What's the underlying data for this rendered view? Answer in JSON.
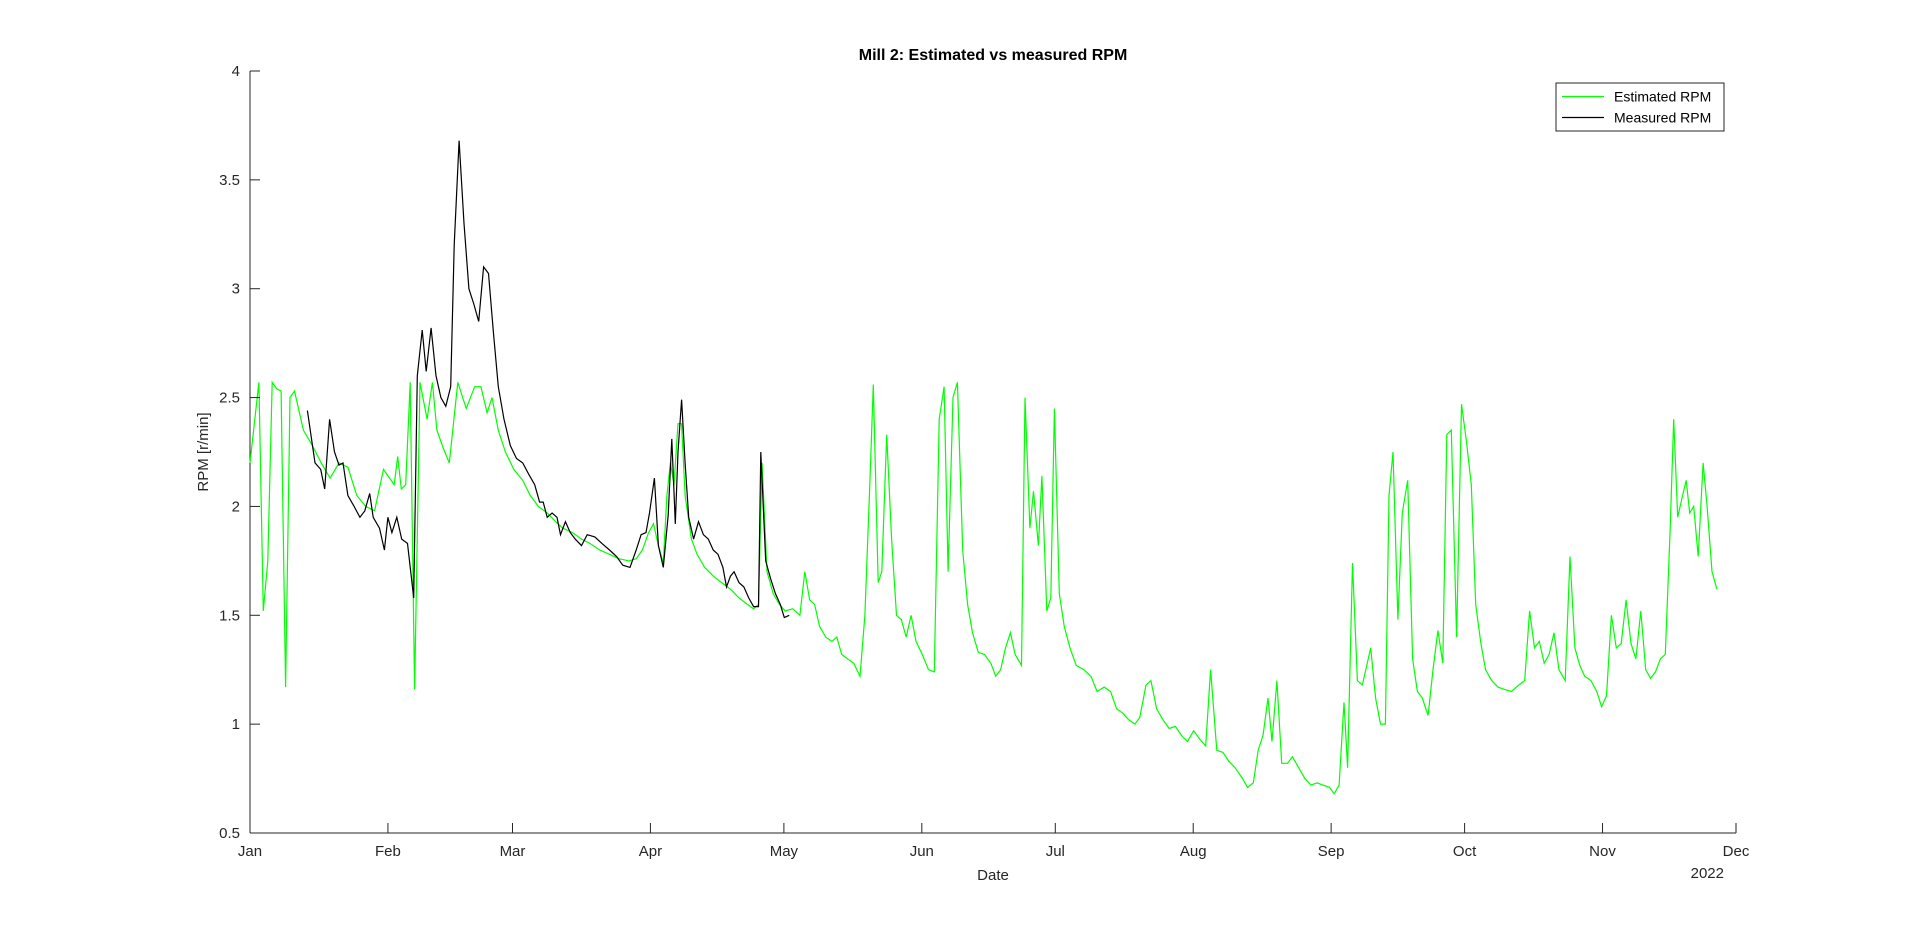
{
  "chart_data": {
    "type": "line",
    "title": "Mill 2: Estimated vs measured RPM",
    "x_label": "Date",
    "y_label": "RPM [r/min]",
    "x_year_label": "2022",
    "xlim": [
      0,
      334
    ],
    "xticks": [
      {
        "value": 0,
        "label": "Jan"
      },
      {
        "value": 31,
        "label": "Feb"
      },
      {
        "value": 59,
        "label": "Mar"
      },
      {
        "value": 90,
        "label": "Apr"
      },
      {
        "value": 120,
        "label": "May"
      },
      {
        "value": 151,
        "label": "Jun"
      },
      {
        "value": 181,
        "label": "Jul"
      },
      {
        "value": 212,
        "label": "Aug"
      },
      {
        "value": 243,
        "label": "Sep"
      },
      {
        "value": 273,
        "label": "Oct"
      },
      {
        "value": 304,
        "label": "Nov"
      },
      {
        "value": 334,
        "label": "Dec"
      }
    ],
    "ylim": [
      0.5,
      4
    ],
    "yticks": [
      0.5,
      1,
      1.5,
      2,
      2.5,
      3,
      3.5,
      4
    ],
    "grid": false,
    "legend": "northeast",
    "series": [
      {
        "name": "Estimated RPM",
        "color": "#00ff00",
        "x": [
          0,
          2,
          3,
          4,
          5,
          6,
          7,
          8,
          9,
          10,
          12,
          14,
          16,
          18,
          20,
          22,
          24,
          26,
          28,
          30,
          32.4,
          33.2,
          34,
          35,
          36,
          37,
          38.2,
          39.8,
          41,
          42,
          43.4,
          44.8,
          46.7,
          48.6,
          50.5,
          51.9,
          53.3,
          54.4,
          55.8,
          57.4,
          59.3,
          61.3,
          63,
          64.8,
          66.8,
          68.7,
          70.3,
          72.5,
          74.5,
          76.4,
          78.6,
          80.8,
          82.9,
          85.2,
          86.8,
          88.2,
          89.6,
          90.7,
          91.8,
          92.9,
          93.7,
          94.5,
          95.3,
          96.2,
          97,
          97.8,
          99.2,
          100.5,
          102.2,
          104.1,
          106,
          108,
          109.9,
          111.8,
          113.2,
          114.3,
          115.1,
          116.2,
          117.6,
          119,
          120.3,
          122,
          123.6,
          124.7,
          125.8,
          126.9,
          128,
          129.4,
          130.8,
          131.9,
          133,
          134.3,
          135.7,
          137.1,
          138.2,
          139.3,
          140.1,
          141.2,
          142,
          143.1,
          144.2,
          145.3,
          146.4,
          147.5,
          148.6,
          149.7,
          151.1,
          152.5,
          153.8,
          154.9,
          156,
          156.9,
          158,
          159,
          160.2,
          161.3,
          162.4,
          163.7,
          165.1,
          166.5,
          167.6,
          168.7,
          169.8,
          170.9,
          172,
          173.4,
          174.2,
          175.3,
          176.1,
          177.2,
          178,
          179.1,
          180,
          180.8,
          181.9,
          183,
          184.3,
          185.7,
          187.4,
          189,
          190.4,
          192,
          193.4,
          194.8,
          196.2,
          197.5,
          198.9,
          200,
          201.4,
          202.5,
          203.8,
          205.2,
          206.6,
          208,
          209.3,
          210.7,
          212.1,
          213.5,
          214.8,
          215.9,
          217.3,
          218.7,
          220,
          221.4,
          223.1,
          224.2,
          225.5,
          226.6,
          227.7,
          228.8,
          229.7,
          230.8,
          231.9,
          233.2,
          234.3,
          235.7,
          237.1,
          238.5,
          239.8,
          241.2,
          242.6,
          243.7,
          244.8,
          245.9,
          246.7,
          247.8,
          248.9,
          250,
          250.8,
          251.9,
          253,
          254.1,
          255.2,
          256,
          256.9,
          258,
          259,
          260.2,
          261.3,
          262.4,
          263.5,
          264.8,
          265.9,
          267,
          268.1,
          269,
          270,
          271.2,
          272.3,
          273.4,
          274.5,
          275.5,
          276.6,
          277.7,
          279.1,
          280.5,
          281.9,
          283.5,
          285.2,
          286.5,
          287.6,
          288.7,
          289.8,
          290.9,
          292,
          293.1,
          294.2,
          295.6,
          296.7,
          297.8,
          298.9,
          300,
          301.4,
          302.7,
          303.8,
          304.9,
          306,
          307.1,
          308.2,
          309.3,
          310.4,
          311.5,
          312.6,
          313.7,
          314.8,
          315.9,
          317,
          318.1,
          319.2,
          320,
          320.9,
          322,
          322.8,
          323.6,
          324.5,
          325.5,
          326.6,
          327.5,
          328.6,
          329.7
        ],
        "values": [
          2.2,
          2.57,
          1.52,
          1.75,
          2.57,
          2.54,
          2.53,
          1.17,
          2.5,
          2.53,
          2.35,
          2.28,
          2.2,
          2.13,
          2.2,
          2.18,
          2.05,
          2.0,
          1.98,
          2.17,
          2.1,
          2.23,
          2.08,
          2.1,
          2.57,
          1.16,
          2.57,
          2.4,
          2.57,
          2.35,
          2.27,
          2.2,
          2.57,
          2.45,
          2.55,
          2.55,
          2.43,
          2.5,
          2.35,
          2.25,
          2.17,
          2.12,
          2.05,
          2.0,
          1.97,
          1.93,
          1.9,
          1.88,
          1.85,
          1.83,
          1.8,
          1.78,
          1.76,
          1.75,
          1.76,
          1.8,
          1.88,
          1.92,
          1.82,
          1.74,
          2.05,
          2.2,
          2.1,
          2.38,
          2.38,
          2.05,
          1.85,
          1.78,
          1.72,
          1.68,
          1.65,
          1.62,
          1.58,
          1.55,
          1.53,
          1.55,
          2.2,
          1.7,
          1.6,
          1.55,
          1.52,
          1.53,
          1.5,
          1.7,
          1.57,
          1.55,
          1.45,
          1.4,
          1.38,
          1.4,
          1.32,
          1.3,
          1.28,
          1.22,
          1.5,
          2.1,
          2.56,
          1.65,
          1.7,
          2.33,
          1.85,
          1.5,
          1.48,
          1.4,
          1.5,
          1.38,
          1.32,
          1.25,
          1.24,
          2.4,
          2.55,
          1.7,
          2.5,
          2.57,
          1.8,
          1.55,
          1.42,
          1.33,
          1.32,
          1.28,
          1.22,
          1.25,
          1.35,
          1.42,
          1.32,
          1.27,
          2.5,
          1.9,
          2.07,
          1.82,
          2.14,
          1.52,
          1.58,
          2.45,
          1.6,
          1.45,
          1.35,
          1.27,
          1.25,
          1.22,
          1.15,
          1.17,
          1.15,
          1.07,
          1.05,
          1.02,
          1.0,
          1.03,
          1.18,
          1.2,
          1.07,
          1.02,
          0.98,
          0.99,
          0.95,
          0.92,
          0.97,
          0.93,
          0.9,
          1.25,
          0.88,
          0.87,
          0.83,
          0.8,
          0.75,
          0.71,
          0.73,
          0.88,
          0.95,
          1.12,
          0.92,
          1.2,
          0.82,
          0.82,
          0.85,
          0.8,
          0.75,
          0.72,
          0.73,
          0.72,
          0.71,
          0.68,
          0.72,
          1.1,
          0.8,
          1.74,
          1.2,
          1.18,
          1.25,
          1.35,
          1.12,
          1.0,
          1.0,
          2.05,
          2.25,
          1.48,
          1.97,
          2.12,
          1.3,
          1.15,
          1.12,
          1.04,
          1.25,
          1.43,
          1.28,
          2.33,
          2.35,
          1.4,
          2.47,
          2.3,
          2.1,
          1.55,
          1.38,
          1.25,
          1.2,
          1.17,
          1.16,
          1.15,
          1.18,
          1.2,
          1.52,
          1.35,
          1.38,
          1.28,
          1.32,
          1.42,
          1.25,
          1.2,
          1.77,
          1.35,
          1.27,
          1.22,
          1.2,
          1.15,
          1.08,
          1.13,
          1.5,
          1.35,
          1.37,
          1.57,
          1.37,
          1.3,
          1.52,
          1.25,
          1.21,
          1.24,
          1.3,
          1.32,
          1.9,
          2.4,
          1.95,
          2.05,
          2.12,
          1.97,
          2.0,
          1.77,
          2.2,
          2.0,
          1.7,
          1.62
        ]
      },
      {
        "name": "Measured RPM",
        "color": "#000000",
        "x": [
          12.9,
          14.6,
          15.9,
          16.8,
          17.9,
          19,
          20,
          20.9,
          22,
          23.4,
          24.7,
          25.8,
          26.9,
          27.7,
          29.1,
          30.2,
          31,
          31.9,
          33,
          34.1,
          35.4,
          36.8,
          37.6,
          38.7,
          39.6,
          40.7,
          41.8,
          42.9,
          44,
          45.1,
          45.9,
          47,
          48.1,
          49.2,
          50.3,
          51.4,
          52.5,
          53.6,
          54.7,
          55.8,
          57.1,
          58.5,
          59.9,
          61.3,
          62.6,
          64,
          65.1,
          65.9,
          66.8,
          67.9,
          69,
          69.8,
          70.9,
          72,
          73.1,
          74.5,
          75.8,
          77.5,
          79.1,
          80.8,
          82.4,
          83.8,
          85.4,
          86.8,
          87.9,
          89,
          89.8,
          90.9,
          91.8,
          92.9,
          94,
          94.8,
          95.6,
          96.2,
          97,
          97.8,
          98.6,
          99.7,
          100.8,
          101.9,
          103,
          104.1,
          105.2,
          106.3,
          107.1,
          108,
          108.8,
          109.9,
          111,
          112.1,
          113.2,
          114.3,
          114.8,
          115.9,
          117,
          118.1,
          119.2,
          120.1,
          121.2
        ],
        "values": [
          2.44,
          2.2,
          2.17,
          2.08,
          2.4,
          2.25,
          2.19,
          2.2,
          2.05,
          2.0,
          1.95,
          1.98,
          2.06,
          1.95,
          1.9,
          1.8,
          1.95,
          1.88,
          1.95,
          1.85,
          1.83,
          1.58,
          2.6,
          2.81,
          2.62,
          2.82,
          2.6,
          2.5,
          2.46,
          2.55,
          3.2,
          3.68,
          3.3,
          3.0,
          2.93,
          2.85,
          3.1,
          3.07,
          2.8,
          2.55,
          2.4,
          2.28,
          2.22,
          2.2,
          2.15,
          2.1,
          2.02,
          2.02,
          1.95,
          1.97,
          1.95,
          1.87,
          1.93,
          1.88,
          1.85,
          1.82,
          1.87,
          1.86,
          1.83,
          1.8,
          1.77,
          1.73,
          1.72,
          1.8,
          1.87,
          1.88,
          1.97,
          2.13,
          1.82,
          1.72,
          1.96,
          2.31,
          1.92,
          2.25,
          2.49,
          2.2,
          1.95,
          1.85,
          1.93,
          1.87,
          1.85,
          1.8,
          1.78,
          1.72,
          1.63,
          1.68,
          1.7,
          1.65,
          1.63,
          1.58,
          1.54,
          1.54,
          2.25,
          1.75,
          1.67,
          1.6,
          1.55,
          1.49,
          1.5
        ]
      }
    ]
  }
}
